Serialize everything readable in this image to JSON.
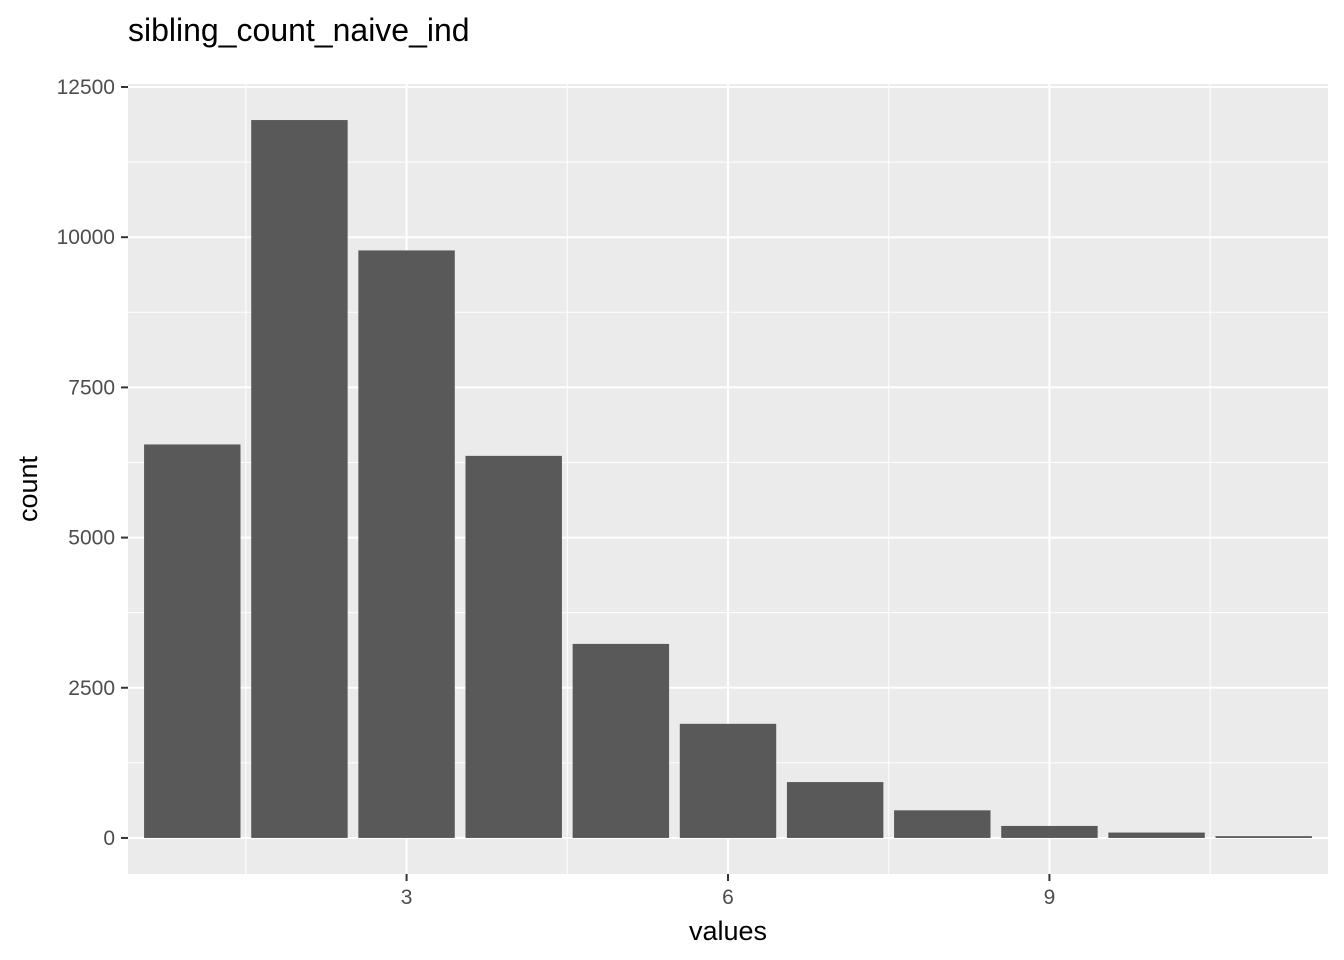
{
  "chart_data": {
    "type": "bar",
    "title": "sibling_count_naive_ind",
    "xlabel": "values",
    "ylabel": "count",
    "x": [
      1,
      2,
      3,
      4,
      5,
      6,
      7,
      8,
      9,
      10,
      11
    ],
    "values": [
      6550,
      11950,
      9780,
      6360,
      3230,
      1900,
      930,
      460,
      200,
      90,
      30
    ],
    "xlim": [
      0.4,
      11.6
    ],
    "ylim": [
      -600,
      12550
    ],
    "x_ticks": [
      3,
      6,
      9
    ],
    "y_ticks": [
      0,
      2500,
      5000,
      7500,
      10000,
      12500
    ],
    "x_tick_labels": [
      "3",
      "6",
      "9"
    ],
    "y_tick_labels": [
      "0",
      "2500",
      "5000",
      "7500",
      "10000",
      "12500"
    ],
    "grid": true,
    "legend": "none",
    "colors": {
      "bar": "#595959",
      "panel": "#ebebeb",
      "grid": "#ffffff",
      "tick_text": "#4d4d4d",
      "text": "#000000"
    }
  }
}
